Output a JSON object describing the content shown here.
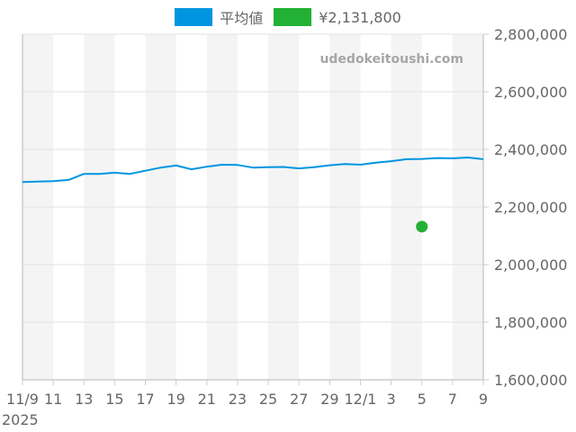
{
  "legend": {
    "items": [
      {
        "label": "平均値",
        "color": "#0095e0"
      },
      {
        "label": "¥2,131,800",
        "color": "#22b035"
      }
    ]
  },
  "watermark": "udedokeitoushi.com",
  "chart_data": {
    "type": "line",
    "title": "",
    "xlabel": "",
    "ylabel": "",
    "year_label": "2025",
    "x_tick_labels": [
      "11/9",
      "11",
      "13",
      "15",
      "17",
      "19",
      "21",
      "23",
      "25",
      "27",
      "29",
      "12/1",
      "3",
      "5",
      "7",
      "9"
    ],
    "y_tick_labels": [
      "2,800,000",
      "2,600,000",
      "2,400,000",
      "2,200,000",
      "2,000,000",
      "1,800,000",
      "1,600,000"
    ],
    "ylim": [
      1600000,
      2800000
    ],
    "xlim_days": [
      0,
      30
    ],
    "grid": true,
    "y_axis_position": "right",
    "series": [
      {
        "name": "平均値",
        "color": "#0095e0",
        "type": "line",
        "x": [
          "11/9",
          "11/10",
          "11/11",
          "11/12",
          "11/13",
          "11/14",
          "11/15",
          "11/16",
          "11/17",
          "11/18",
          "11/19",
          "11/20",
          "11/21",
          "11/22",
          "11/23",
          "11/24",
          "11/25",
          "11/26",
          "11/27",
          "11/28",
          "11/29",
          "11/30",
          "12/1",
          "12/2",
          "12/3",
          "12/4",
          "12/5",
          "12/6",
          "12/7",
          "12/8",
          "12/9"
        ],
        "values": [
          2287000,
          2288000,
          2290000,
          2294000,
          2315000,
          2315000,
          2319000,
          2315000,
          2326000,
          2337000,
          2344000,
          2331000,
          2340000,
          2347000,
          2346000,
          2337000,
          2338000,
          2339000,
          2334000,
          2338000,
          2345000,
          2349000,
          2347000,
          2354000,
          2359000,
          2366000,
          2367000,
          2370000,
          2369000,
          2372000,
          2366000
        ]
      },
      {
        "name": "¥2,131,800",
        "color": "#22b035",
        "type": "scatter",
        "x": [
          "12/5"
        ],
        "values": [
          2131800
        ]
      }
    ]
  }
}
